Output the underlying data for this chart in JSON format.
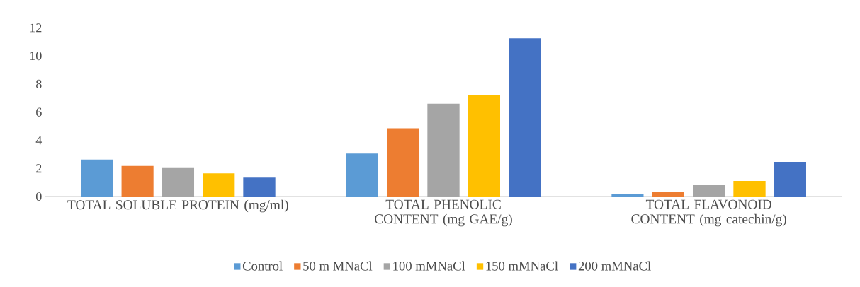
{
  "chart_data": {
    "type": "bar",
    "categories": [
      "TOTAL SOLUBLE PROTEIN  (mg/ml)",
      "TOTAL PHENOLIC CONTENT (mg GAE/g)",
      "TOTAL FLAVONOID CONTENT (mg catechin/g)"
    ],
    "series": [
      {
        "name": "Control",
        "color": "#5b9bd5",
        "values": [
          2.63,
          3.05,
          0.2
        ]
      },
      {
        "name": "50 m MNaCl",
        "color": "#ed7d31",
        "values": [
          2.17,
          4.85,
          0.34
        ]
      },
      {
        "name": "100 mMNaCl",
        "color": "#a5a5a5",
        "values": [
          2.07,
          6.6,
          0.84
        ]
      },
      {
        "name": "150 mMNaCl",
        "color": "#ffc000",
        "values": [
          1.65,
          7.2,
          1.1
        ]
      },
      {
        "name": "200 mMNaCl",
        "color": "#4472c4",
        "values": [
          1.35,
          11.25,
          2.46
        ]
      }
    ],
    "ylim": [
      0,
      12
    ],
    "yticks": [
      0,
      2,
      4,
      6,
      8,
      10,
      12
    ],
    "legend": "bottom"
  }
}
